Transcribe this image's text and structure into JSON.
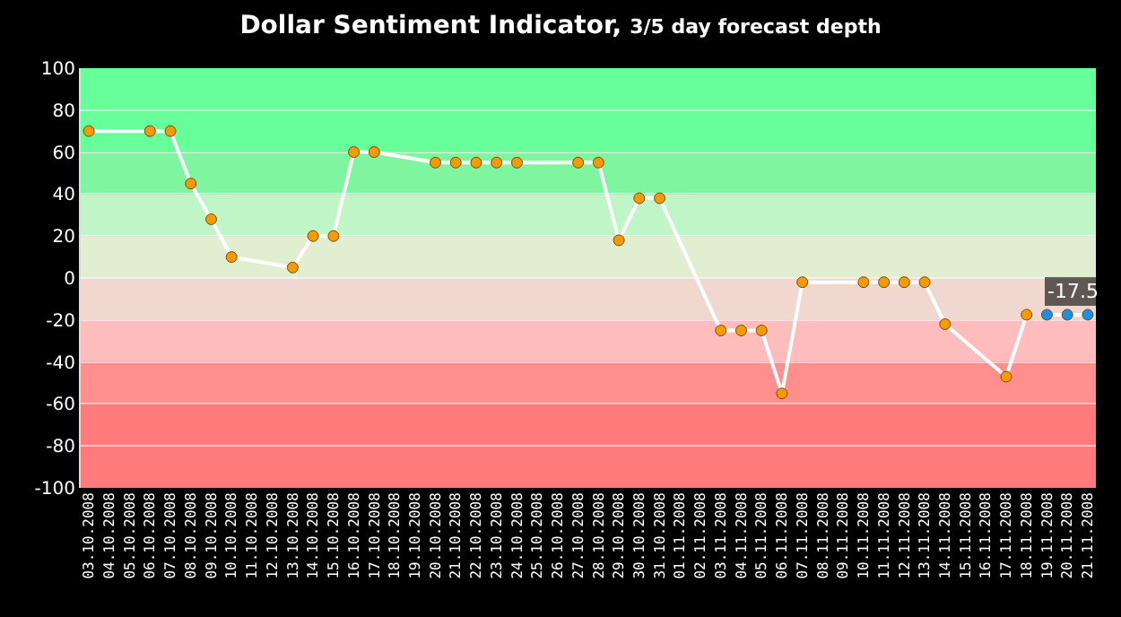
{
  "chart_data": {
    "type": "line",
    "title": "Dollar Sentiment Indicator,",
    "subtitle": "3/5 day forecast depth",
    "categories": [
      "03.10.2008",
      "04.10.2008",
      "05.10.2008",
      "06.10.2008",
      "07.10.2008",
      "08.10.2008",
      "09.10.2008",
      "10.10.2008",
      "11.10.2008",
      "12.10.2008",
      "13.10.2008",
      "14.10.2008",
      "15.10.2008",
      "16.10.2008",
      "17.10.2008",
      "18.10.2008",
      "19.10.2008",
      "20.10.2008",
      "21.10.2008",
      "22.10.2008",
      "23.10.2008",
      "24.10.2008",
      "25.10.2008",
      "26.10.2008",
      "27.10.2008",
      "28.10.2008",
      "29.10.2008",
      "30.10.2008",
      "31.10.2008",
      "01.11.2008",
      "02.11.2008",
      "03.11.2008",
      "04.11.2008",
      "05.11.2008",
      "06.11.2008",
      "07.11.2008",
      "08.11.2008",
      "09.11.2008",
      "10.11.2008",
      "11.11.2008",
      "12.11.2008",
      "13.11.2008",
      "14.11.2008",
      "15.11.2008",
      "16.11.2008",
      "17.11.2008",
      "18.11.2008",
      "19.11.2008",
      "20.11.2008",
      "21.11.2008"
    ],
    "series": [
      {
        "color": "#f59a00",
        "values": [
          70,
          null,
          null,
          70,
          70,
          45,
          28,
          10,
          null,
          null,
          5,
          20,
          20,
          60,
          60,
          null,
          null,
          55,
          55,
          55,
          55,
          55,
          null,
          null,
          55,
          55,
          18,
          38,
          38,
          null,
          null,
          -25,
          -25,
          -25,
          -55,
          -2,
          null,
          null,
          -2,
          -2,
          -2,
          -2,
          -22,
          null,
          null,
          -47,
          -17.5,
          null,
          null,
          null
        ]
      },
      {
        "color": "#1a8fe6",
        "values": [
          null,
          null,
          null,
          null,
          null,
          null,
          null,
          null,
          null,
          null,
          null,
          null,
          null,
          null,
          null,
          null,
          null,
          null,
          null,
          null,
          null,
          null,
          null,
          null,
          null,
          null,
          null,
          null,
          null,
          null,
          null,
          null,
          null,
          null,
          null,
          null,
          null,
          null,
          null,
          null,
          null,
          null,
          null,
          null,
          null,
          null,
          null,
          -17.5,
          -17.5,
          -17.5
        ]
      }
    ],
    "annotations": [
      {
        "text": "-17.5",
        "x": "21.11.2008",
        "y": -17.5
      }
    ],
    "ylim": [
      -100,
      100
    ],
    "yticks": [
      -100,
      -80,
      -60,
      -40,
      -20,
      0,
      20,
      40,
      60,
      80,
      100
    ],
    "bands": [
      {
        "axis": "y",
        "from": 60,
        "to": 100,
        "color": "#66ff99"
      },
      {
        "axis": "y",
        "from": 40,
        "to": 60,
        "color": "#80f5a0"
      },
      {
        "axis": "y",
        "from": 20,
        "to": 40,
        "color": "#c0f5c8"
      },
      {
        "axis": "y",
        "from": 0,
        "to": 20,
        "color": "#e2eed0"
      },
      {
        "axis": "y",
        "from": -20,
        "to": 0,
        "color": "#f0d8d0"
      },
      {
        "axis": "y",
        "from": -40,
        "to": -20,
        "color": "#ffbcbc"
      },
      {
        "axis": "y",
        "from": -60,
        "to": -40,
        "color": "#ff8e8e"
      },
      {
        "axis": "y",
        "from": -100,
        "to": -60,
        "color": "#ff7a7a"
      }
    ],
    "grid": "y",
    "marker": "circle",
    "line_style": "solid"
  }
}
